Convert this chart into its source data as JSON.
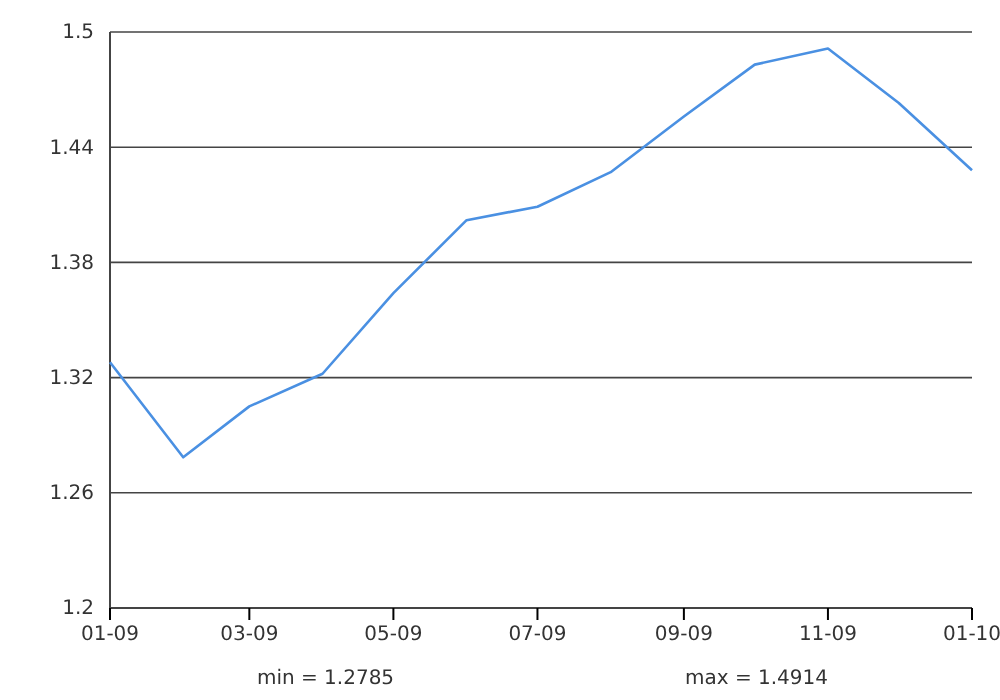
{
  "chart_data": {
    "type": "line",
    "x": [
      "2009-01",
      "2009-02",
      "2009-03",
      "2009-04",
      "2009-05",
      "2009-06",
      "2009-07",
      "2009-08",
      "2009-09",
      "2009-10",
      "2009-11",
      "2009-12",
      "2010-01"
    ],
    "series": [
      {
        "color": "#4a90e2",
        "values": [
          1.328,
          1.2785,
          1.305,
          1.322,
          1.364,
          1.402,
          1.409,
          1.427,
          1.456,
          1.483,
          1.4914,
          1.463,
          1.428
        ]
      }
    ],
    "xlim": [
      "2009-01",
      "2010-01"
    ],
    "xticks": [
      {
        "value": "2009-01",
        "label": "01-09"
      },
      {
        "value": "2009-03",
        "label": "03-09"
      },
      {
        "value": "2009-05",
        "label": "05-09"
      },
      {
        "value": "2009-07",
        "label": "07-09"
      },
      {
        "value": "2009-09",
        "label": "09-09"
      },
      {
        "value": "2009-11",
        "label": "11-09"
      },
      {
        "value": "2010-01",
        "label": "01-10"
      }
    ],
    "ylim": [
      1.2,
      1.5
    ],
    "yticks": [
      1.2,
      1.26,
      1.32,
      1.38,
      1.44,
      1.5
    ],
    "grid": "y",
    "annotations": [
      "min = 1.2785",
      "max = 1.4914"
    ]
  }
}
